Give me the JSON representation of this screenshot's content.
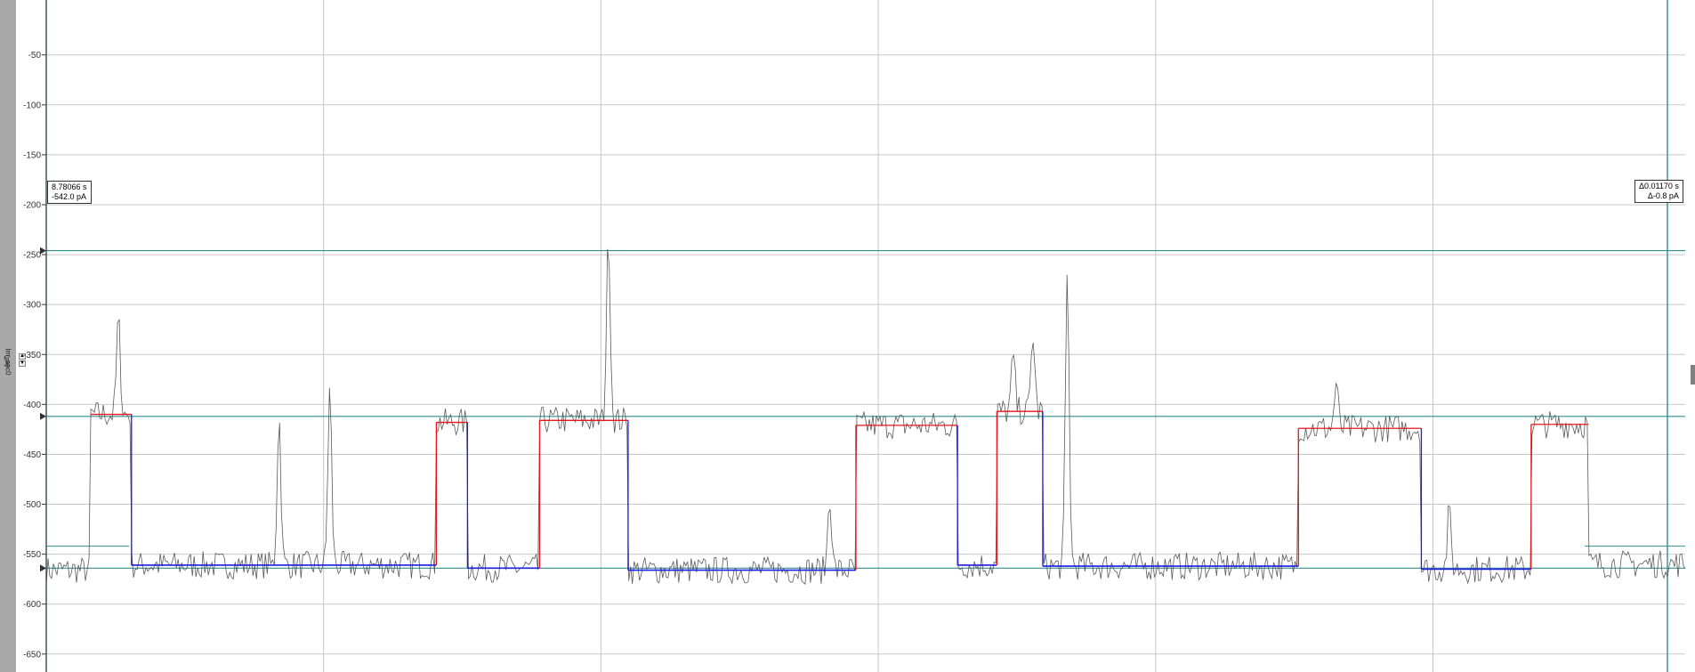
{
  "chart_data": {
    "type": "line",
    "ylabel": "Im_sec0",
    "yunit": "(pA)",
    "ylim": [
      -668,
      5
    ],
    "yticks": [
      -50,
      -100,
      -150,
      -200,
      -250,
      -300,
      -350,
      -400,
      -450,
      -500,
      -550,
      -600,
      -650
    ],
    "ytick_labels": [
      "-50",
      "-100",
      "-150",
      "-200",
      "-250",
      "-300",
      "-350",
      "-400",
      "-450",
      "-500",
      "-550",
      "-600",
      "-650"
    ],
    "grid": true,
    "cursor_levels": [
      -246,
      -412,
      -564
    ],
    "idealized_fit": {
      "open_level_color": "#e8141b",
      "closed_level_color": "#1c1ce6",
      "segments": [
        {
          "state": "open",
          "y": -410,
          "x_start": 0.027,
          "x_end": 0.052
        },
        {
          "state": "closed",
          "y": -561,
          "x_start": 0.052,
          "x_end": 0.238
        },
        {
          "state": "open",
          "y": -418,
          "x_start": 0.238,
          "x_end": 0.257
        },
        {
          "state": "closed",
          "y": -564,
          "x_start": 0.257,
          "x_end": 0.301
        },
        {
          "state": "open",
          "y": -416,
          "x_start": 0.301,
          "x_end": 0.355
        },
        {
          "state": "closed",
          "y": -566,
          "x_start": 0.355,
          "x_end": 0.494
        },
        {
          "state": "open",
          "y": -421,
          "x_start": 0.494,
          "x_end": 0.556
        },
        {
          "state": "closed",
          "y": -561,
          "x_start": 0.556,
          "x_end": 0.58
        },
        {
          "state": "open",
          "y": -407,
          "x_start": 0.58,
          "x_end": 0.608
        },
        {
          "state": "closed",
          "y": -562,
          "x_start": 0.608,
          "x_end": 0.764
        },
        {
          "state": "open",
          "y": -424,
          "x_start": 0.764,
          "x_end": 0.839
        },
        {
          "state": "closed",
          "y": -565,
          "x_start": 0.839,
          "x_end": 0.906
        },
        {
          "state": "open",
          "y": -420,
          "x_start": 0.906,
          "x_end": 0.941
        }
      ]
    },
    "raw_trace_color": "#5a5a5a",
    "raw_spikes": [
      {
        "x": 0.044,
        "y": -315
      },
      {
        "x": 0.142,
        "y": -412
      },
      {
        "x": 0.173,
        "y": -385
      },
      {
        "x": 0.343,
        "y": -232
      },
      {
        "x": 0.478,
        "y": -490
      },
      {
        "x": 0.59,
        "y": -352
      },
      {
        "x": 0.602,
        "y": -330
      },
      {
        "x": 0.623,
        "y": -272
      },
      {
        "x": 0.787,
        "y": -380
      },
      {
        "x": 0.856,
        "y": -508
      }
    ]
  },
  "cursor_readouts": {
    "left": {
      "time": "8.78066 s",
      "current": "-542.0 pA"
    },
    "right": {
      "time": "Δ0.01170 s",
      "current": "Δ-0.8 pA"
    }
  },
  "colors": {
    "grid": "#c8c8c8",
    "cursor_line": "#2f8f8f",
    "fit_open": "#e8141b",
    "fit_closed": "#1c1ce6",
    "trace": "#5a5a5a"
  }
}
